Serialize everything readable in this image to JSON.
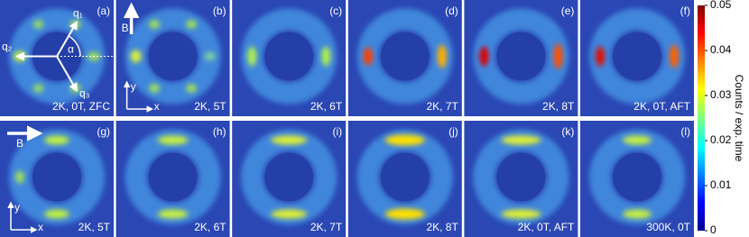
{
  "chart_data": {
    "type": "heatmap",
    "panels": [
      {
        "letter": "(a)",
        "label": "2K, 0T, ZFC",
        "markers": [
          "q₁",
          "q₂",
          "q₃",
          "α"
        ]
      },
      {
        "letter": "(b)",
        "label": "2K, 5T",
        "markers": [
          "B",
          "y",
          "x"
        ]
      },
      {
        "letter": "(c)",
        "label": "2K, 6T"
      },
      {
        "letter": "(d)",
        "label": "2K, 7T"
      },
      {
        "letter": "(e)",
        "label": "2K, 8T"
      },
      {
        "letter": "(f)",
        "label": "2K, 0T, AFT"
      },
      {
        "letter": "(g)",
        "label": "2K, 5T",
        "markers": [
          "B",
          "y",
          "x"
        ]
      },
      {
        "letter": "(h)",
        "label": "2K, 6T"
      },
      {
        "letter": "(i)",
        "label": "2K, 7T"
      },
      {
        "letter": "(j)",
        "label": "2K, 8T"
      },
      {
        "letter": "(k)",
        "label": "2K, 0T, AFT"
      },
      {
        "letter": "(l)",
        "label": "300K, 0T"
      }
    ],
    "colorbar_label": "Counts / exp. time",
    "ylim": [
      0,
      0.05
    ],
    "yticks": [
      0,
      0.01,
      0.02,
      0.03,
      0.04,
      0.05
    ]
  }
}
